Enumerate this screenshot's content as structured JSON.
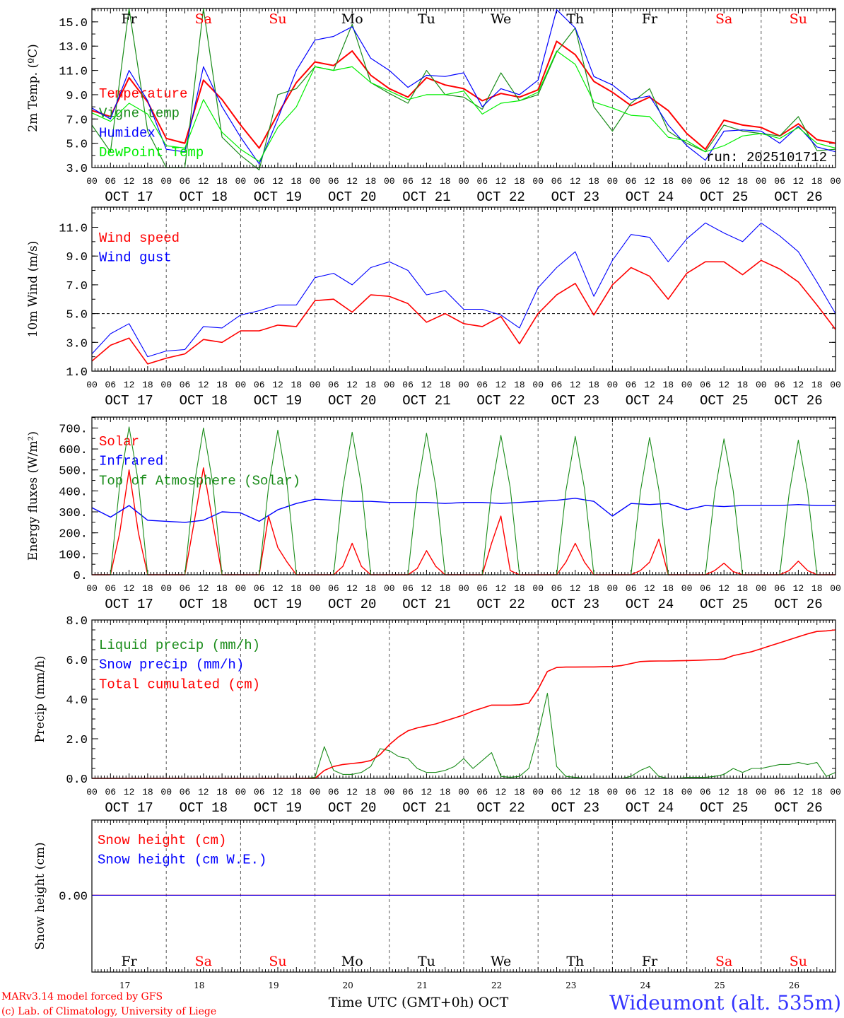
{
  "x_axis": {
    "hour_labels": [
      "00",
      "06",
      "12",
      "18"
    ],
    "dates": [
      "OCT 17",
      "OCT 18",
      "OCT 19",
      "OCT 20",
      "OCT 21",
      "OCT 22",
      "OCT 23",
      "OCT 24",
      "OCT 25",
      "OCT 26"
    ],
    "day_numbers": [
      "17",
      "18",
      "19",
      "20",
      "21",
      "22",
      "23",
      "24",
      "25",
      "26"
    ],
    "day_names": [
      {
        "name": "Fr",
        "color": "#000000"
      },
      {
        "name": "Sa",
        "color": "#ff0000"
      },
      {
        "name": "Su",
        "color": "#ff0000"
      },
      {
        "name": "Mo",
        "color": "#000000"
      },
      {
        "name": "Tu",
        "color": "#000000"
      },
      {
        "name": "We",
        "color": "#000000"
      },
      {
        "name": "Th",
        "color": "#000000"
      },
      {
        "name": "Fr",
        "color": "#000000"
      },
      {
        "name": "Sa",
        "color": "#ff0000"
      },
      {
        "name": "Su",
        "color": "#ff0000"
      }
    ],
    "title": "Time UTC (GMT+0h) OCT"
  },
  "run_label": "run: 2025101712",
  "footer": {
    "credit1": "MARv3.14 model forced by GFS",
    "credit2": "(c) Lab. of Climatology, University of Liege",
    "station": "Wideumont (alt. 535m)"
  },
  "chart_data": [
    {
      "type": "line",
      "ylabel": "2m Temp. (ºC)",
      "ylim": [
        3,
        16.1
      ],
      "ytick_labels": [
        "3.0",
        "5.0",
        "7.0",
        "9.0",
        "11.0",
        "13.0",
        "15.0"
      ],
      "minor_step": 1,
      "series": [
        {
          "name": "Temperature",
          "color": "#ff0000",
          "width": 2,
          "step_hours": 6,
          "values": [
            7.7,
            7.2,
            10.4,
            8.4,
            5.4,
            5.0,
            10.2,
            8.6,
            6.5,
            4.6,
            7.4,
            10.0,
            11.7,
            11.4,
            12.6,
            10.6,
            9.5,
            8.8,
            10.4,
            9.8,
            9.5,
            8.5,
            9.1,
            8.8,
            9.4,
            13.4,
            12.3,
            10.1,
            9.2,
            8.1,
            8.8,
            7.7,
            5.8,
            4.5,
            6.9,
            6.5,
            6.3,
            5.6,
            6.6,
            5.3,
            5.0
          ]
        },
        {
          "name": "Vigne temp",
          "color": "#1a8c1a",
          "width": 1.2,
          "step_hours": 6,
          "values": [
            6.5,
            4.3,
            16.5,
            6.0,
            3.0,
            3.0,
            16.5,
            5.5,
            4.0,
            2.8,
            9.0,
            9.5,
            11.3,
            11.0,
            14.8,
            10.0,
            9.1,
            8.3,
            11.0,
            9.0,
            8.8,
            7.8,
            10.8,
            8.5,
            9.0,
            12.5,
            14.5,
            8.0,
            6.0,
            8.3,
            9.5,
            6.0,
            5.0,
            4.3,
            6.5,
            6.0,
            5.8,
            5.6,
            7.2,
            4.4,
            4.5
          ]
        },
        {
          "name": "Humidex",
          "color": "#0000ff",
          "width": 1.2,
          "step_hours": 6,
          "values": [
            7.9,
            7.0,
            11.0,
            8.5,
            4.5,
            4.3,
            11.3,
            8.0,
            5.5,
            3.3,
            7.0,
            11.0,
            13.5,
            13.8,
            14.6,
            12.0,
            11.0,
            9.6,
            10.6,
            10.5,
            10.8,
            8.0,
            9.5,
            9.0,
            10.2,
            16.0,
            14.5,
            10.5,
            9.8,
            8.6,
            8.9,
            6.5,
            4.8,
            3.6,
            6.0,
            6.1,
            6.0,
            5.0,
            6.4,
            4.7,
            4.3
          ]
        },
        {
          "name": "DewPoint Temp",
          "color": "#00ee00",
          "width": 1.2,
          "step_hours": 6,
          "values": [
            7.5,
            6.8,
            8.3,
            7.4,
            4.8,
            4.6,
            8.6,
            5.9,
            4.5,
            3.5,
            6.3,
            8.0,
            11.3,
            11.0,
            11.3,
            10.0,
            9.3,
            8.6,
            9.0,
            9.0,
            9.3,
            7.4,
            8.3,
            8.5,
            9.2,
            12.6,
            11.5,
            8.4,
            7.9,
            7.3,
            7.2,
            5.5,
            5.2,
            4.3,
            4.8,
            5.6,
            5.8,
            5.4,
            6.3,
            5.0,
            4.6
          ]
        }
      ]
    },
    {
      "type": "line",
      "ylabel": "10m Wind (m/s)",
      "ylim": [
        1,
        12.4
      ],
      "ytick_labels": [
        "1.0",
        "3.0",
        "5.0",
        "7.0",
        "9.0",
        "11.0"
      ],
      "minor_step": 1,
      "reference_line": 5,
      "series": [
        {
          "name": "Wind speed",
          "color": "#ff0000",
          "width": 1.6,
          "step_hours": 6,
          "values": [
            1.7,
            2.8,
            3.3,
            1.5,
            1.9,
            2.2,
            3.2,
            3.0,
            3.8,
            3.8,
            4.2,
            4.1,
            5.9,
            6.0,
            5.1,
            6.3,
            6.2,
            5.7,
            4.4,
            5.0,
            4.3,
            4.1,
            4.8,
            2.9,
            5.0,
            6.3,
            7.1,
            4.9,
            7.0,
            8.2,
            7.6,
            6.0,
            7.8,
            8.6,
            8.6,
            7.7,
            8.7,
            8.1,
            7.2,
            5.6,
            3.9
          ]
        },
        {
          "name": "Wind gust",
          "color": "#0000ff",
          "width": 1.1,
          "step_hours": 6,
          "values": [
            2.2,
            3.6,
            4.3,
            2.0,
            2.4,
            2.5,
            4.1,
            4.0,
            4.9,
            5.2,
            5.6,
            5.6,
            7.5,
            7.8,
            7.0,
            8.2,
            8.6,
            8.0,
            6.3,
            6.6,
            5.3,
            5.3,
            4.9,
            4.0,
            6.8,
            8.2,
            9.3,
            6.2,
            8.7,
            10.5,
            10.3,
            8.6,
            10.2,
            11.3,
            10.6,
            10.0,
            11.3,
            10.4,
            9.3,
            7.2,
            5.0
          ]
        }
      ]
    },
    {
      "type": "line",
      "ylabel": "Energy fluxes (W/m²)",
      "ylim": [
        0,
        752
      ],
      "ytick_labels": [
        "0.",
        "100.",
        "200.",
        "300.",
        "400.",
        "500.",
        "600.",
        "700."
      ],
      "minor_step": 50,
      "series": [
        {
          "name": "Solar",
          "color": "#ff0000",
          "width": 1.4,
          "step_hours": 3,
          "values": [
            0,
            0,
            0,
            200,
            500,
            200,
            0,
            0,
            0,
            0,
            0,
            250,
            510,
            250,
            0,
            0,
            0,
            0,
            0,
            280,
            130,
            60,
            0,
            0,
            0,
            0,
            0,
            40,
            150,
            40,
            0,
            0,
            0,
            0,
            0,
            30,
            115,
            40,
            0,
            0,
            0,
            0,
            0,
            150,
            280,
            20,
            0,
            0,
            0,
            0,
            0,
            60,
            150,
            60,
            0,
            0,
            0,
            0,
            0,
            20,
            60,
            170,
            0,
            0,
            0,
            0,
            0,
            20,
            55,
            15,
            0,
            0,
            0,
            0,
            0,
            20,
            65,
            20,
            0,
            0,
            0
          ]
        },
        {
          "name": "Infrared",
          "color": "#0000ff",
          "width": 1.4,
          "step_hours": 6,
          "values": [
            320,
            275,
            330,
            260,
            255,
            250,
            260,
            300,
            295,
            255,
            310,
            340,
            360,
            355,
            350,
            350,
            345,
            345,
            345,
            340,
            345,
            345,
            340,
            345,
            350,
            355,
            365,
            350,
            280,
            340,
            335,
            340,
            310,
            330,
            325,
            330,
            330,
            330,
            335,
            330,
            330
          ]
        },
        {
          "name": "Top of Atmosphere (Solar)",
          "color": "#1a8c1a",
          "width": 1.1,
          "step_hours": 3,
          "values": [
            0,
            0,
            0,
            430,
            705,
            440,
            0,
            0,
            0,
            0,
            0,
            425,
            700,
            435,
            0,
            0,
            0,
            0,
            0,
            420,
            690,
            430,
            0,
            0,
            0,
            0,
            0,
            415,
            680,
            425,
            0,
            0,
            0,
            0,
            0,
            410,
            675,
            420,
            0,
            0,
            0,
            0,
            0,
            405,
            665,
            415,
            0,
            0,
            0,
            0,
            0,
            400,
            660,
            410,
            0,
            0,
            0,
            0,
            0,
            395,
            655,
            405,
            0,
            0,
            0,
            0,
            0,
            390,
            648,
            400,
            0,
            0,
            0,
            0,
            0,
            385,
            642,
            395,
            0,
            0,
            0
          ]
        }
      ]
    },
    {
      "type": "line",
      "ylabel": "Precip (mm/h)",
      "ylim": [
        0,
        8
      ],
      "ytick_labels": [
        "0.0",
        "2.0",
        "4.0",
        "6.0",
        "8.0"
      ],
      "minor_step": 0.5,
      "series": [
        {
          "name": "Liquid precip (mm/h)",
          "color": "#1a8c1a",
          "width": 1.1,
          "step_hours": 3,
          "values": [
            0,
            0,
            0,
            0,
            0,
            0,
            0,
            0,
            0,
            0,
            0,
            0,
            0,
            0,
            0,
            0,
            0,
            0,
            0,
            0,
            0,
            0,
            0,
            0,
            0.05,
            1.6,
            0.4,
            0.2,
            0.2,
            0.3,
            0.6,
            1.5,
            1.4,
            1.1,
            1.0,
            0.5,
            0.3,
            0.3,
            0.4,
            0.6,
            1.0,
            0.5,
            0.9,
            1.3,
            0.1,
            0.05,
            0.1,
            0.5,
            2.2,
            4.3,
            0.6,
            0.1,
            0.05,
            0,
            0,
            0,
            0,
            0,
            0.1,
            0.4,
            0.6,
            0.1,
            0,
            0,
            0.05,
            0.05,
            0.05,
            0.1,
            0.2,
            0.5,
            0.3,
            0.5,
            0.5,
            0.6,
            0.7,
            0.7,
            0.8,
            0.7,
            0.8,
            0.1,
            0.3
          ]
        },
        {
          "name": "Snow precip (mm/h)",
          "color": "#0000ff",
          "width": 1.1,
          "step_hours": 6,
          "values": [
            0,
            0,
            0,
            0,
            0,
            0,
            0,
            0,
            0,
            0,
            0,
            0,
            0,
            0,
            0,
            0,
            0,
            0,
            0,
            0,
            0,
            0,
            0,
            0,
            0,
            0,
            0,
            0,
            0,
            0,
            0,
            0,
            0,
            0,
            0,
            0,
            0,
            0,
            0,
            0,
            0
          ]
        },
        {
          "name": "Total cumulated (cm)",
          "color": "#ff0000",
          "width": 1.6,
          "step_hours": 3,
          "values": [
            0,
            0,
            0,
            0,
            0,
            0,
            0,
            0,
            0,
            0,
            0,
            0,
            0,
            0,
            0,
            0,
            0,
            0,
            0,
            0,
            0,
            0,
            0,
            0,
            0,
            0.4,
            0.6,
            0.7,
            0.75,
            0.8,
            0.9,
            1.2,
            1.7,
            2.1,
            2.4,
            2.55,
            2.65,
            2.75,
            2.9,
            3.05,
            3.2,
            3.4,
            3.55,
            3.7,
            3.7,
            3.7,
            3.72,
            3.8,
            4.5,
            5.4,
            5.6,
            5.62,
            5.62,
            5.63,
            5.63,
            5.64,
            5.65,
            5.7,
            5.8,
            5.9,
            5.92,
            5.93,
            5.93,
            5.94,
            5.95,
            5.96,
            5.98,
            6.0,
            6.03,
            6.2,
            6.3,
            6.4,
            6.55,
            6.7,
            6.85,
            7.0,
            7.15,
            7.3,
            7.42,
            7.45,
            7.5
          ]
        }
      ]
    },
    {
      "type": "line",
      "ylabel": "Snow height (cm)",
      "ylim": [
        -1.02,
        1.0
      ],
      "ytick_labels": [
        "0.00"
      ],
      "minor_step": null,
      "series": [
        {
          "name": "Snow height (cm)",
          "color": "#ff0000",
          "width": 1.3,
          "step_hours": 6,
          "values": [
            0,
            0,
            0,
            0,
            0,
            0,
            0,
            0,
            0,
            0,
            0,
            0,
            0,
            0,
            0,
            0,
            0,
            0,
            0,
            0,
            0,
            0,
            0,
            0,
            0,
            0,
            0,
            0,
            0,
            0,
            0,
            0,
            0,
            0,
            0,
            0,
            0,
            0,
            0,
            0,
            0
          ]
        },
        {
          "name": "Snow height (cm W.E.)",
          "color": "#0000ff",
          "width": 1.0,
          "step_hours": 6,
          "values": [
            0,
            0,
            0,
            0,
            0,
            0,
            0,
            0,
            0,
            0,
            0,
            0,
            0,
            0,
            0,
            0,
            0,
            0,
            0,
            0,
            0,
            0,
            0,
            0,
            0,
            0,
            0,
            0,
            0,
            0,
            0,
            0,
            0,
            0,
            0,
            0,
            0,
            0,
            0,
            0,
            0
          ]
        }
      ]
    }
  ]
}
